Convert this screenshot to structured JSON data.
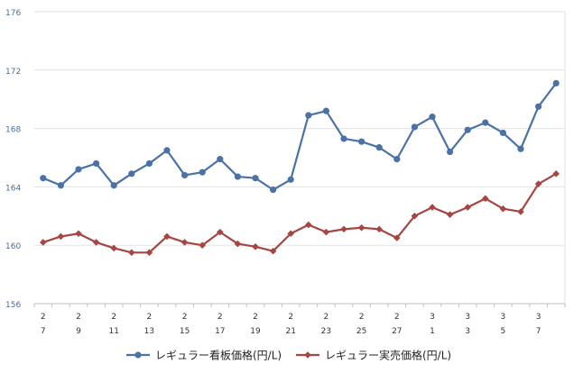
{
  "chart_data": {
    "type": "line",
    "categories": [
      {
        "top": "2",
        "bottom": "7"
      },
      {
        "top": "",
        "bottom": ""
      },
      {
        "top": "2",
        "bottom": "9"
      },
      {
        "top": "",
        "bottom": ""
      },
      {
        "top": "2",
        "bottom": "11"
      },
      {
        "top": "",
        "bottom": ""
      },
      {
        "top": "2",
        "bottom": "13"
      },
      {
        "top": "",
        "bottom": ""
      },
      {
        "top": "2",
        "bottom": "15"
      },
      {
        "top": "",
        "bottom": ""
      },
      {
        "top": "2",
        "bottom": "17"
      },
      {
        "top": "",
        "bottom": ""
      },
      {
        "top": "2",
        "bottom": "19"
      },
      {
        "top": "",
        "bottom": ""
      },
      {
        "top": "2",
        "bottom": "21"
      },
      {
        "top": "",
        "bottom": ""
      },
      {
        "top": "2",
        "bottom": "23"
      },
      {
        "top": "",
        "bottom": ""
      },
      {
        "top": "2",
        "bottom": "25"
      },
      {
        "top": "",
        "bottom": ""
      },
      {
        "top": "2",
        "bottom": "27"
      },
      {
        "top": "",
        "bottom": ""
      },
      {
        "top": "3",
        "bottom": "1"
      },
      {
        "top": "",
        "bottom": ""
      },
      {
        "top": "3",
        "bottom": "3"
      },
      {
        "top": "",
        "bottom": ""
      },
      {
        "top": "3",
        "bottom": "5"
      },
      {
        "top": "",
        "bottom": ""
      },
      {
        "top": "3",
        "bottom": "7"
      },
      {
        "top": "",
        "bottom": ""
      }
    ],
    "series": [
      {
        "name": "レギュラー看板価格(円/L)",
        "color": "#4a72a6",
        "marker": "circle",
        "values": [
          164.6,
          164.1,
          165.2,
          165.6,
          164.1,
          164.9,
          165.6,
          166.5,
          164.8,
          165.0,
          165.9,
          164.7,
          164.6,
          163.8,
          164.5,
          168.9,
          169.2,
          167.3,
          167.1,
          166.7,
          165.9,
          168.1,
          168.8,
          166.4,
          167.9,
          168.4,
          167.7,
          166.6,
          169.5,
          171.1
        ]
      },
      {
        "name": "レギュラー実売価格(円/L)",
        "color": "#a64542",
        "marker": "diamond",
        "values": [
          160.2,
          160.6,
          160.8,
          160.2,
          159.8,
          159.5,
          159.5,
          160.6,
          160.2,
          160.0,
          160.9,
          160.1,
          159.9,
          159.6,
          160.8,
          161.4,
          160.9,
          161.1,
          161.2,
          161.1,
          160.5,
          162.0,
          162.6,
          162.1,
          162.6,
          163.2,
          162.5,
          162.3,
          164.2,
          164.9
        ]
      }
    ],
    "yticks": [
      "156",
      "160",
      "164",
      "168",
      "172",
      "176"
    ],
    "ylim": [
      156,
      176
    ],
    "grid": true,
    "legend_position": "bottom"
  }
}
